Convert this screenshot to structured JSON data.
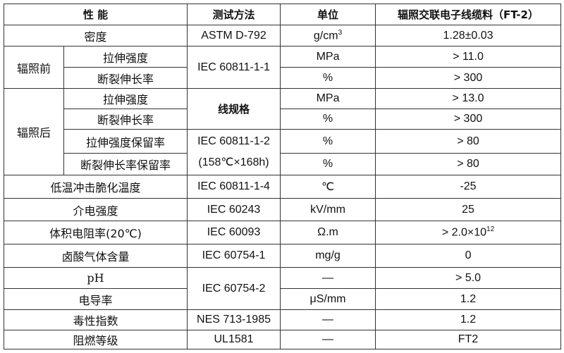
{
  "header": {
    "property": "性  能",
    "method": "测试方法",
    "unit": "单位",
    "value": "辐照交联电子线缆料（FT-2）"
  },
  "rows": {
    "density": {
      "property": "密度",
      "method": "ASTM D-792",
      "unit": "g/cm",
      "unit_sup": "3",
      "value": "1.28±0.03"
    },
    "before": {
      "group": "辐照前",
      "method": "IEC 60811-1-1",
      "tensile": {
        "property": "拉伸强度",
        "unit": "MPa",
        "value": "> 11.0"
      },
      "elongation": {
        "property": "断裂伸长率",
        "unit": "%",
        "value": "> 300"
      }
    },
    "after": {
      "group": "辐照后",
      "method1": "线规格",
      "method2_line1": "IEC 60811-1-2",
      "method2_line2": "(158℃×168h)",
      "tensile": {
        "property": "拉伸强度",
        "unit": "MPa",
        "value": "> 13.0"
      },
      "elongation": {
        "property": "断裂伸长率",
        "unit": "%",
        "value": "> 300"
      },
      "tensile_ret": {
        "property": "拉伸强度保留率",
        "unit": "%",
        "value": "> 80"
      },
      "elong_ret": {
        "property": "断裂伸长率保留率",
        "unit": "%",
        "value": "> 80"
      }
    },
    "cold": {
      "property": "低温冲击脆化温度",
      "method": "IEC 60811-1-4",
      "unit": "℃",
      "value": "-25"
    },
    "dielectric": {
      "property": "介电强度",
      "method": "IEC 60243",
      "unit": "kV/mm",
      "value": "25"
    },
    "resistivity": {
      "property": "体积电阻率(20℃)",
      "method": "IEC 60093",
      "unit": "Ω.m",
      "value": "> 2.0×10",
      "value_sup": "12"
    },
    "halogen": {
      "property": "卤酸气体含量",
      "method": "IEC 60754-1",
      "unit": "mg/g",
      "value": "0"
    },
    "ph": {
      "property": "pH",
      "method": "IEC 60754-2",
      "unit": "—",
      "value": "> 5.0"
    },
    "conductivity": {
      "property": "电导率",
      "unit": "μS/mm",
      "value": "1.2"
    },
    "toxicity": {
      "property": "毒性指数",
      "method": "NES 713-1985",
      "unit": "—",
      "value": "1.2"
    },
    "flame": {
      "property": "阻燃等级",
      "method": "UL1581",
      "unit": "—",
      "value": "FT2"
    }
  }
}
